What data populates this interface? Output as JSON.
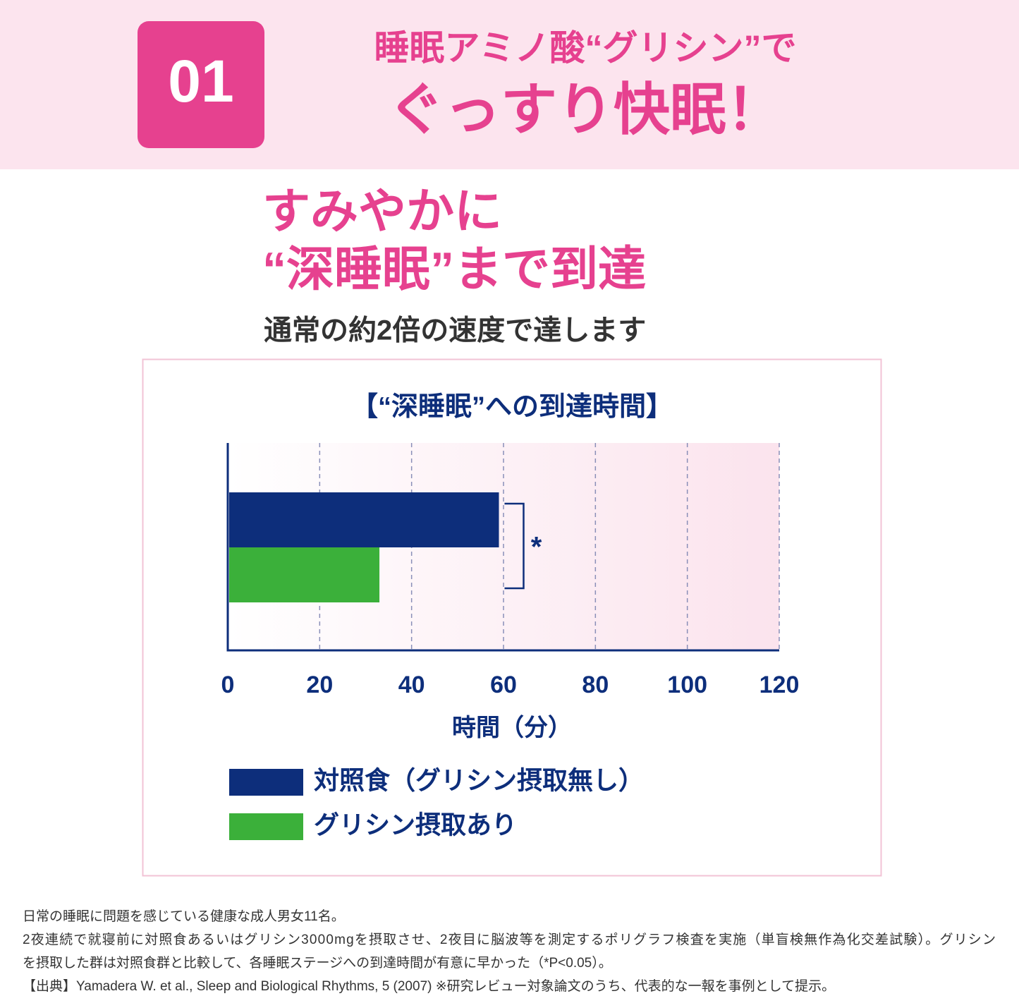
{
  "header": {
    "badge": "01",
    "line1": "睡眠アミノ酸“グリシン”で",
    "line2": "ぐっすり快眠！"
  },
  "headline": {
    "line1": "すみやかに",
    "line2": "“深睡眠”まで到達",
    "subtitle": "通常の約2倍の速度で達します"
  },
  "chart_data": {
    "type": "hbar",
    "title": "【“深睡眠”への到達時間】",
    "categories": [
      null
    ],
    "series": [
      {
        "name": "対照食（グリシン摂取無し）",
        "color": "#0d2e7b",
        "values": [
          59
        ]
      },
      {
        "name": "グリシン摂取あり",
        "color": "#3bb03a",
        "values": [
          33
        ]
      }
    ],
    "xlim": [
      0,
      120
    ],
    "xticks": [
      0,
      20,
      40,
      60,
      80,
      100,
      120
    ],
    "x_label": "時間（分）",
    "grid": true,
    "annotation": "*"
  },
  "footnotes": [
    "日常の睡眠に問題を感じている健康な成人男女11名。",
    "2夜連続で就寝前に対照食あるいはグリシン3000mgを摂取させ、2夜目に脳波等を測定するポリグラフ検査を実施（単盲検無作為化交差試験）。グリシン",
    "を摂取した群は対照食群と比較して、各睡眠ステージへの到達時間が有意に早かった（*P<0.05）。",
    "【出典】Yamadera W. et al., Sleep and Biological Rhythms, 5 (2007) ※研究レビュー対象論文のうち、代表的な一報を事例として提示。"
  ]
}
